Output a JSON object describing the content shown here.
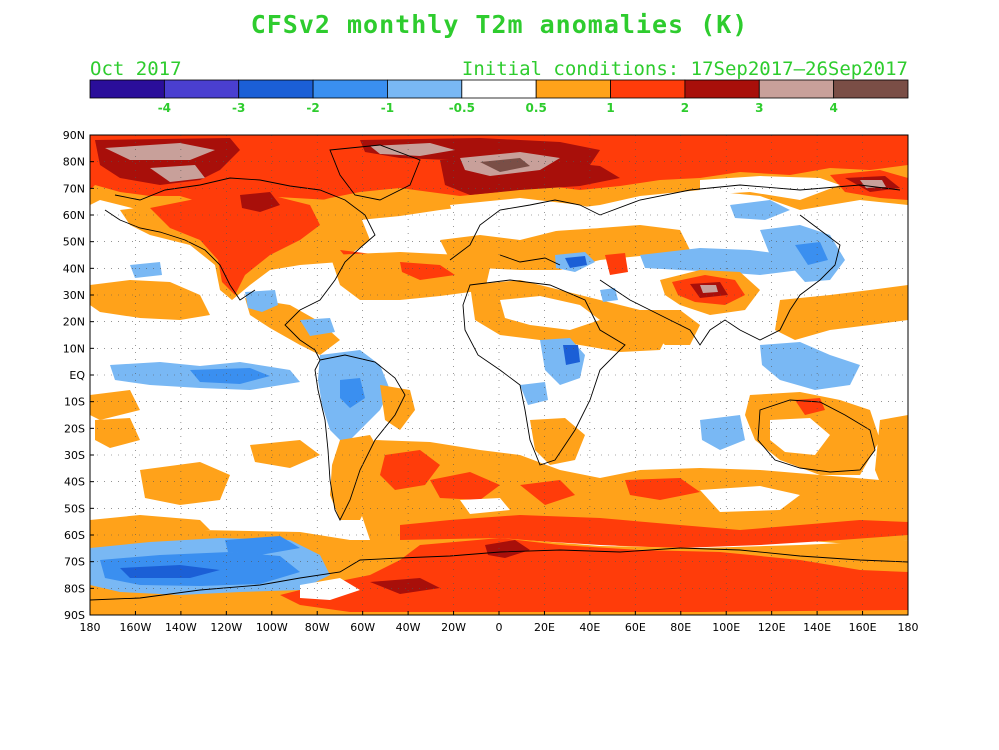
{
  "title": "CFSv2 monthly T2m anomalies (K)",
  "subtitle_left": "Oct 2017",
  "subtitle_right": "Initial conditions: 17Sep2017–26Sep2017",
  "colorbar": {
    "colors": [
      "#2a0e9a",
      "#4a3fd0",
      "#1b5fd6",
      "#3a8ff0",
      "#79b8f4",
      "#ffffff",
      "#ffa21a",
      "#ff3c0a",
      "#a80f0a",
      "#c8a09a",
      "#7a4e46"
    ],
    "labels": [
      "-4",
      "-3",
      "-2",
      "-1",
      "-0.5",
      "0.5",
      "1",
      "2",
      "3",
      "4"
    ]
  },
  "lat_labels": [
    "90N",
    "80N",
    "70N",
    "60N",
    "50N",
    "40N",
    "30N",
    "20N",
    "10N",
    "EQ",
    "10S",
    "20S",
    "30S",
    "40S",
    "50S",
    "60S",
    "70S",
    "80S",
    "90S"
  ],
  "lon_labels": [
    "180",
    "160W",
    "140W",
    "120W",
    "100W",
    "80W",
    "60W",
    "40W",
    "20W",
    "0",
    "20E",
    "40E",
    "60E",
    "80E",
    "100E",
    "120E",
    "140E",
    "160E",
    "180"
  ]
}
